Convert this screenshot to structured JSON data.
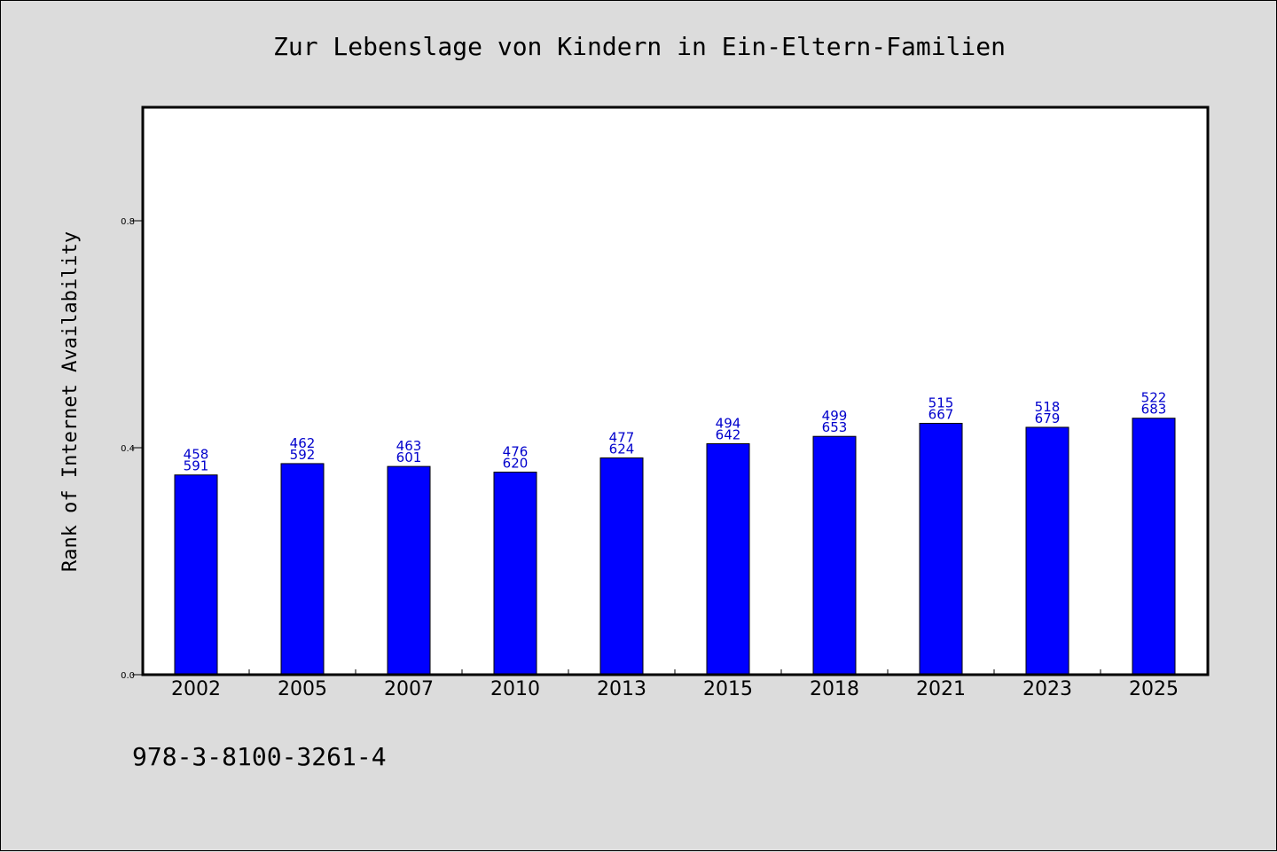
{
  "chart_data": {
    "type": "bar",
    "title": "Zur Lebenslage von Kindern in Ein-Eltern-Familien",
    "xlabel": "",
    "ylabel": "Rank of Internet Availability",
    "categories": [
      "2002",
      "2005",
      "2007",
      "2010",
      "2013",
      "2015",
      "2018",
      "2021",
      "2023",
      "2025"
    ],
    "values": [
      0.352,
      0.372,
      0.367,
      0.357,
      0.382,
      0.407,
      0.42,
      0.443,
      0.436,
      0.452
    ],
    "data_labels": [
      [
        "458",
        "591"
      ],
      [
        "462",
        "592"
      ],
      [
        "463",
        "601"
      ],
      [
        "476",
        "620"
      ],
      [
        "477",
        "624"
      ],
      [
        "494",
        "642"
      ],
      [
        "499",
        "653"
      ],
      [
        "515",
        "667"
      ],
      [
        "518",
        "679"
      ],
      [
        "522",
        "683"
      ]
    ],
    "ylim": [
      0,
      1.0
    ],
    "yticks": [
      0.0,
      0.4,
      0.8
    ],
    "ytick_labels": [
      "0.0",
      "0.4",
      "0.8"
    ],
    "grid": false,
    "legend": "none",
    "colors": {
      "bar": "#0000ff",
      "bar_edge": "#000000",
      "data_label": "#0000cc",
      "background": "#dcdcdc",
      "plot_background": "#ffffff"
    }
  },
  "footnote": "978-3-8100-3261-4"
}
